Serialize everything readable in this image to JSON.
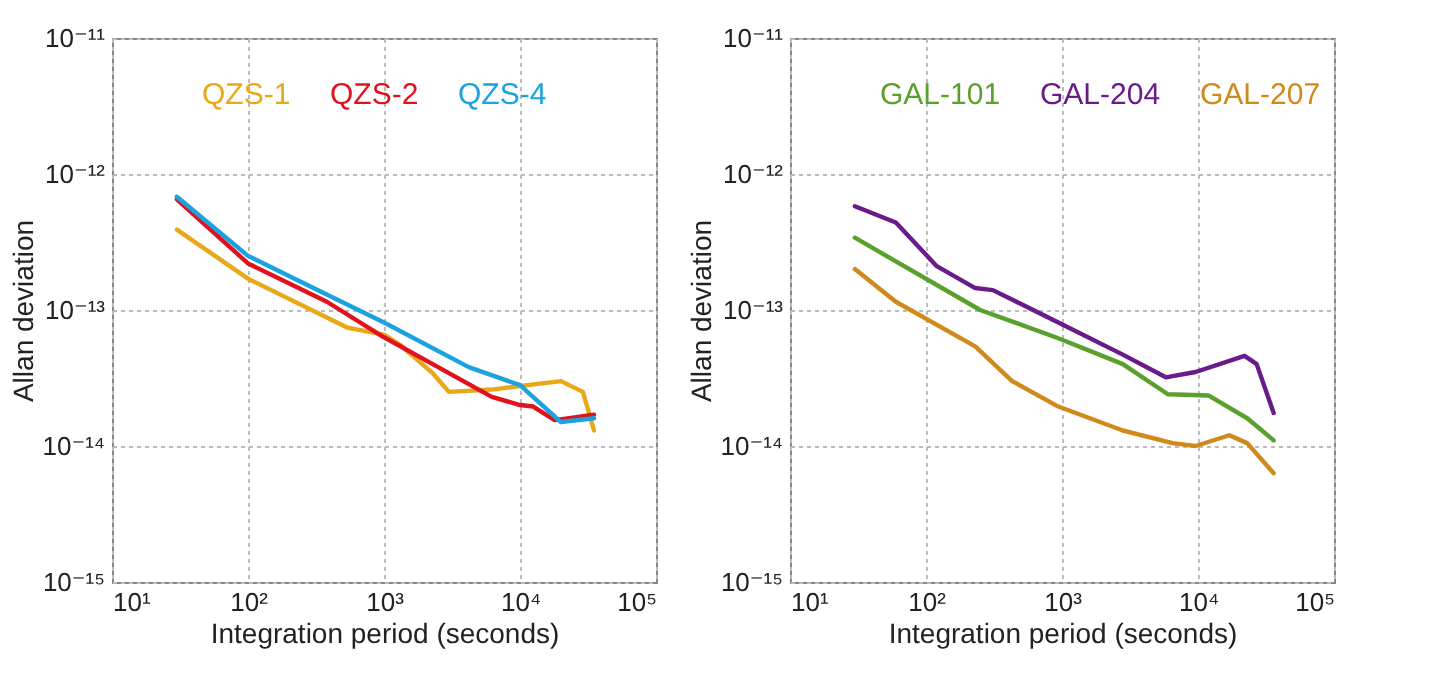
{
  "chart_data": [
    {
      "type": "line",
      "xlabel": "Integration period (seconds)",
      "ylabel": "Allan deviation",
      "log": "xy",
      "grid": true,
      "legend": "top",
      "xlim": [
        10,
        100000
      ],
      "ylim": [
        1e-15,
        1e-11
      ],
      "xticks": [
        {
          "value": 10,
          "label": "10¹"
        },
        {
          "value": 100,
          "label": "10²"
        },
        {
          "value": 1000,
          "label": "10³"
        },
        {
          "value": 10000,
          "label": "10⁴"
        },
        {
          "value": 100000,
          "label": "10⁵"
        }
      ],
      "yticks": [
        {
          "value": 1e-15,
          "label": "10⁻¹⁵"
        },
        {
          "value": 1e-14,
          "label": "10⁻¹⁴"
        },
        {
          "value": 1e-13,
          "label": "10⁻¹³"
        },
        {
          "value": 1e-12,
          "label": "10⁻¹²"
        },
        {
          "value": 1e-11,
          "label": "10⁻¹¹"
        }
      ],
      "series": [
        {
          "name": "QZS-1",
          "color": "#e8a817",
          "x": [
            30,
            100,
            540,
            1000,
            1300,
            2300,
            3000,
            6200,
            20000,
            29000,
            35000
          ],
          "values": [
            3.9e-13,
            1.7e-13,
            7.4e-14,
            6.6e-14,
            5.6e-14,
            3.4e-14,
            2.5e-14,
            2.6e-14,
            3e-14,
            2.5e-14,
            1.3e-14
          ]
        },
        {
          "name": "QZS-2",
          "color": "#e0121e",
          "x": [
            30,
            100,
            380,
            1000,
            2500,
            6200,
            10000,
            12500,
            18000,
            35000
          ],
          "values": [
            6.5e-13,
            2.2e-13,
            1.15e-13,
            6.3e-14,
            3.8e-14,
            2.3e-14,
            2e-14,
            1.95e-14,
            1.55e-14,
            1.7e-14
          ]
        },
        {
          "name": "QZS-4",
          "color": "#1aa3e0",
          "x": [
            30,
            100,
            220,
            1000,
            4200,
            10000,
            20000,
            35000
          ],
          "values": [
            6.8e-13,
            2.5e-13,
            1.7e-13,
            8.1e-14,
            3.8e-14,
            2.8e-14,
            1.5e-14,
            1.6e-14
          ]
        }
      ]
    },
    {
      "type": "line",
      "xlabel": "Integration period (seconds)",
      "ylabel": "Allan deviation",
      "log": "xy",
      "grid": true,
      "legend": "top",
      "xlim": [
        10,
        100000
      ],
      "ylim": [
        1e-15,
        1e-11
      ],
      "xticks": [
        {
          "value": 10,
          "label": "10¹"
        },
        {
          "value": 100,
          "label": "10²"
        },
        {
          "value": 1000,
          "label": "10³"
        },
        {
          "value": 10000,
          "label": "10⁴"
        },
        {
          "value": 100000,
          "label": "10⁵"
        }
      ],
      "yticks": [
        {
          "value": 1e-15,
          "label": "10⁻¹⁵"
        },
        {
          "value": 1e-14,
          "label": "10⁻¹⁴"
        },
        {
          "value": 1e-13,
          "label": "10⁻¹³"
        },
        {
          "value": 1e-12,
          "label": "10⁻¹²"
        },
        {
          "value": 1e-11,
          "label": "10⁻¹¹"
        }
      ],
      "series": [
        {
          "name": "GAL-101",
          "color": "#5aa02c",
          "x": [
            30,
            250,
            940,
            2800,
            6000,
            12000,
            23000,
            36000
          ],
          "values": [
            3.4e-13,
            1e-13,
            6.2e-14,
            4e-14,
            2.4e-14,
            2.35e-14,
            1.6e-14,
            1.1e-14
          ]
        },
        {
          "name": "GAL-204",
          "color": "#6a1b8a",
          "x": [
            30,
            60,
            120,
            230,
            310,
            940,
            2800,
            5800,
            9600,
            22000,
            27000,
            36000
          ],
          "values": [
            5.8e-13,
            4.4e-13,
            2.1e-13,
            1.45e-13,
            1.4e-13,
            8.1e-14,
            4.7e-14,
            3.2e-14,
            3.5e-14,
            4.6e-14,
            4e-14,
            1.75e-14
          ]
        },
        {
          "name": "GAL-207",
          "color": "#d08a1c",
          "x": [
            30,
            60,
            230,
            430,
            940,
            2800,
            6500,
            9600,
            17000,
            23000,
            36000
          ],
          "values": [
            2e-13,
            1.15e-13,
            5.4e-14,
            3e-14,
            1.95e-14,
            1.3e-14,
            1.05e-14,
            1e-14,
            1.2e-14,
            1.05e-14,
            6.3e-15
          ]
        }
      ]
    }
  ]
}
